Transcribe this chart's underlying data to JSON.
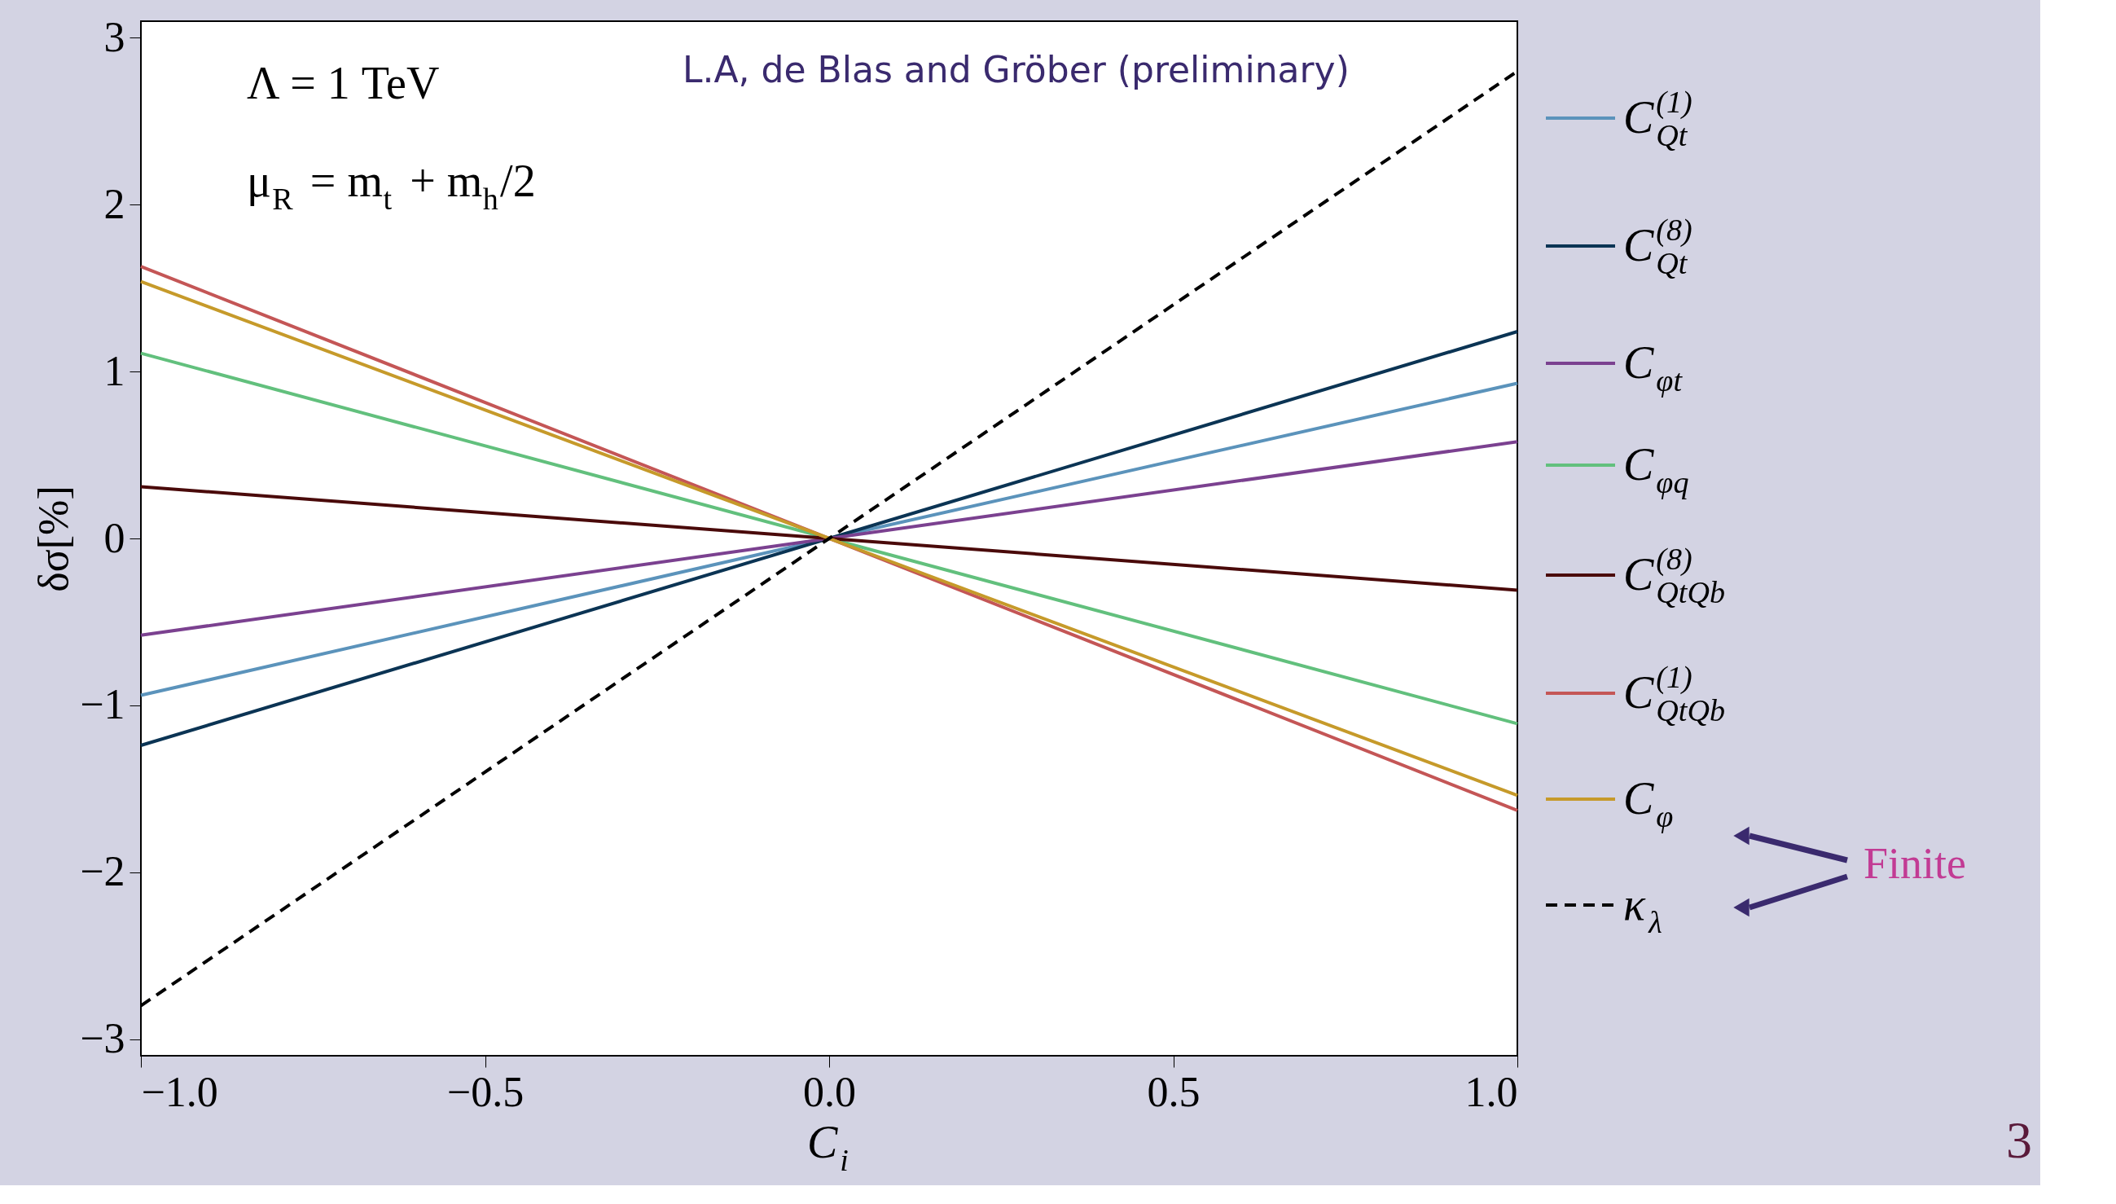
{
  "chart_data": {
    "type": "line",
    "xlabel": "C$_{i}$",
    "ylabel": "δσ[%]",
    "xlim": [
      -1,
      1
    ],
    "ylim": [
      -3.1,
      3.1
    ],
    "xticks": [
      {
        "value": -1,
        "label": "−1.0"
      },
      {
        "value": -0.5,
        "label": "−0.5"
      },
      {
        "value": 0,
        "label": "0.0"
      },
      {
        "value": 0.5,
        "label": "0.5"
      },
      {
        "value": 1,
        "label": "1.0"
      }
    ],
    "yticks": [
      {
        "value": -3,
        "label": "−3"
      },
      {
        "value": -2,
        "label": "−2"
      },
      {
        "value": -1,
        "label": "−1"
      },
      0,
      1,
      2,
      3
    ],
    "x": [
      -1,
      0,
      1
    ],
    "grid": false,
    "legend": "right",
    "marker": "none",
    "series": [
      {
        "name": "C$_{Qt}$$^{(1)}$",
        "color": "#5b93bb",
        "values": [
          -0.94,
          0,
          0.93
        ]
      },
      {
        "name": "C$_{Qt}$$^{(8)}$",
        "color": "#0b3454",
        "values": [
          -1.24,
          0,
          1.24
        ]
      },
      {
        "name": "C$_{φt}$",
        "color": "#7b4190",
        "values": [
          -0.58,
          0,
          0.58
        ]
      },
      {
        "name": "C$_{φq}$",
        "color": "#62c07d",
        "values": [
          1.11,
          0,
          -1.11
        ]
      },
      {
        "name": "C$_{QtQb}$$^{(8)}$",
        "color": "#4a0a0a",
        "values": [
          0.31,
          0,
          -0.31
        ]
      },
      {
        "name": "C$_{QtQb}$$^{(1)}$",
        "color": "#c45656",
        "values": [
          1.63,
          0,
          -1.63
        ]
      },
      {
        "name": "C$_{φ}$",
        "color": "#c69a2a",
        "values": [
          1.54,
          0,
          -1.54
        ]
      },
      {
        "name": "κ$_{λ}$",
        "color": "#000000",
        "values": [
          -2.8,
          0,
          2.8
        ],
        "line_style": "dashed"
      }
    ],
    "annotations": [
      "Λ = 1 TeV",
      "μ$_{R}$ = m$_{t}$ + m$_{h}$/2",
      "L.A, de Blas and Gröber (preliminary)",
      "Finite",
      "3"
    ]
  }
}
